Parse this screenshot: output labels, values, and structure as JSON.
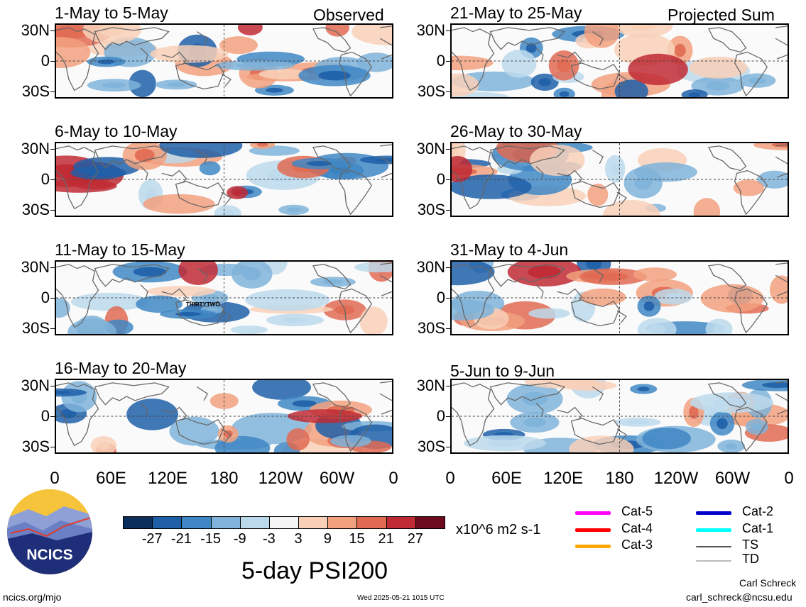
{
  "panels": {
    "left": [
      {
        "title": "1-May to 5-May",
        "tag": "Observed"
      },
      {
        "title": "6-May to 10-May",
        "tag": ""
      },
      {
        "title": "11-May to 15-May",
        "tag": ""
      },
      {
        "title": "16-May to 20-May",
        "tag": ""
      }
    ],
    "right": [
      {
        "title": "21-May to 25-May",
        "tag": "Projected Sum"
      },
      {
        "title": "26-May to 30-May",
        "tag": ""
      },
      {
        "title": "31-May to 4-Jun",
        "tag": ""
      },
      {
        "title": "5-Jun to 9-Jun",
        "tag": ""
      }
    ]
  },
  "lat_labels": [
    "30N",
    "0",
    "30S"
  ],
  "lon_labels": [
    "0",
    "60E",
    "120E",
    "180",
    "120W",
    "60W",
    "0"
  ],
  "storm_label": "THIRTYTWO",
  "colorbar": {
    "colors": [
      "#0b2e5c",
      "#1e5fa8",
      "#3f87c4",
      "#7fb3d9",
      "#bcd9ec",
      "#f5f5f5",
      "#f8d0b8",
      "#f2a07e",
      "#e06a52",
      "#c02a34",
      "#6e0a20"
    ],
    "labels": [
      "-27",
      "-21",
      "-15",
      "-9",
      "-3",
      "3",
      "9",
      "15",
      "21",
      "27"
    ],
    "units": "x10^6 m2 s-1"
  },
  "title": "5-day PSI200",
  "legend": [
    {
      "label": "Cat-5",
      "color": "#ff00ff"
    },
    {
      "label": "Cat-4",
      "color": "#ff0000"
    },
    {
      "label": "Cat-3",
      "color": "#ffa500"
    },
    {
      "label": "Cat-2",
      "color": "#0000cc"
    },
    {
      "label": "Cat-1",
      "color": "#00ffff"
    },
    {
      "label": "TS",
      "color": "#555555"
    },
    {
      "label": "TD",
      "color": "#bbbbbb"
    }
  ],
  "logo_text": "NCICS",
  "footer": {
    "url": "ncics.org/mjo",
    "timestamp": "Wed 2025-05-21 1015 UTC",
    "author": "Carl Schreck",
    "email": "carl_schreck@ncsu.edu"
  }
}
